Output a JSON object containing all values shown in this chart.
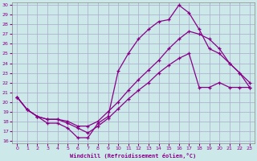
{
  "xlabel": "Windchill (Refroidissement éolien,°C)",
  "bg_color": "#cce8e8",
  "grid_color": "#aaaacc",
  "line_color": "#880088",
  "xlim": [
    -0.5,
    23.5
  ],
  "ylim": [
    15.7,
    30.3
  ],
  "xticks": [
    0,
    1,
    2,
    3,
    4,
    5,
    6,
    7,
    8,
    9,
    10,
    11,
    12,
    13,
    14,
    15,
    16,
    17,
    18,
    19,
    20,
    21,
    22,
    23
  ],
  "yticks": [
    16,
    17,
    18,
    19,
    20,
    21,
    22,
    23,
    24,
    25,
    26,
    27,
    28,
    29,
    30
  ],
  "line1_x": [
    0,
    1,
    2,
    3,
    4,
    5,
    6,
    7,
    8,
    9,
    10,
    11,
    12,
    13,
    14,
    15,
    16,
    17,
    18,
    19,
    20,
    21,
    22,
    23
  ],
  "line1_y": [
    20.5,
    19.2,
    18.5,
    17.8,
    17.8,
    17.3,
    16.3,
    16.3,
    17.8,
    18.5,
    23.2,
    25.0,
    26.5,
    27.5,
    28.3,
    28.5,
    30.0,
    29.2,
    27.5,
    25.5,
    25.0,
    24.0,
    23.0,
    21.5
  ],
  "line2_x": [
    0,
    1,
    2,
    3,
    4,
    5,
    6,
    7,
    8,
    9,
    10,
    11,
    12,
    13,
    14,
    15,
    16,
    17,
    18,
    19,
    20,
    21,
    22,
    23
  ],
  "line2_y": [
    20.5,
    19.2,
    18.5,
    18.2,
    18.2,
    18.0,
    17.5,
    17.5,
    18.0,
    19.0,
    20.0,
    21.2,
    22.3,
    23.3,
    24.3,
    25.5,
    26.5,
    27.3,
    27.0,
    26.5,
    25.5,
    24.0,
    23.0,
    22.0
  ],
  "line3_x": [
    0,
    1,
    2,
    3,
    4,
    5,
    6,
    7,
    8,
    9,
    10,
    11,
    12,
    13,
    14,
    15,
    16,
    17,
    18,
    19,
    20,
    21,
    22,
    23
  ],
  "line3_y": [
    20.5,
    19.2,
    18.5,
    18.2,
    18.2,
    17.8,
    17.3,
    16.8,
    17.5,
    18.3,
    19.3,
    20.3,
    21.2,
    22.0,
    23.0,
    23.8,
    24.5,
    25.0,
    21.5,
    21.5,
    22.0,
    21.5,
    21.5,
    21.5
  ]
}
